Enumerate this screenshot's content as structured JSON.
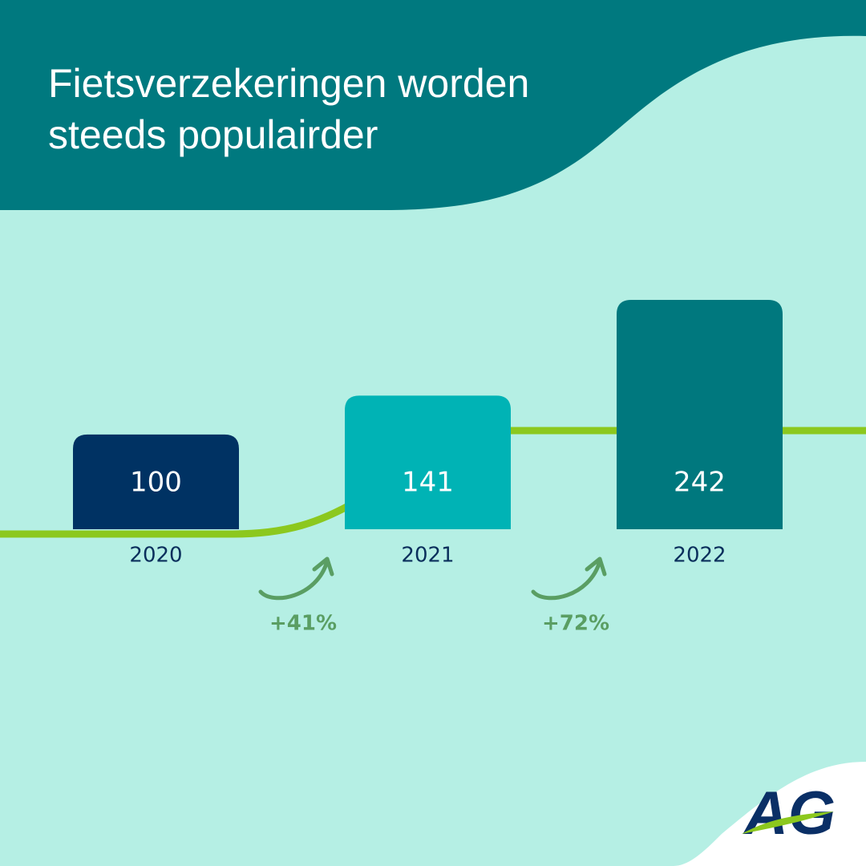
{
  "chart_data": {
    "type": "bar",
    "title": "Fietsverzekeringen worden steeds populairder",
    "categories": [
      "2020",
      "2021",
      "2022"
    ],
    "values": [
      100,
      141,
      242
    ],
    "colors": [
      "#003263",
      "#00b3b5",
      "#00787e"
    ],
    "annotations": [
      "+41%",
      "+72%"
    ],
    "brand": "AG"
  }
}
